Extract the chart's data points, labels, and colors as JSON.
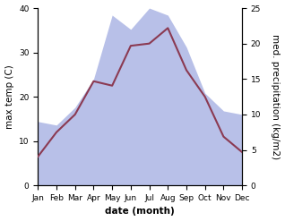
{
  "months": [
    "Jan",
    "Feb",
    "Mar",
    "Apr",
    "May",
    "Jun",
    "Jul",
    "Aug",
    "Sep",
    "Oct",
    "Nov",
    "Dec"
  ],
  "temp": [
    6.5,
    12.0,
    16.0,
    23.5,
    22.5,
    31.5,
    32.0,
    35.5,
    26.0,
    20.0,
    11.0,
    7.5
  ],
  "precip": [
    9.0,
    8.5,
    11.0,
    15.0,
    24.0,
    22.0,
    25.0,
    24.0,
    19.5,
    13.0,
    10.5,
    10.0
  ],
  "temp_color": "#8b3a52",
  "precip_fill_color": "#b8c0e8",
  "left_ylim": [
    0,
    40
  ],
  "right_ylim": [
    0,
    25
  ],
  "left_yticks": [
    0,
    10,
    20,
    30,
    40
  ],
  "right_yticks": [
    0,
    5,
    10,
    15,
    20,
    25
  ],
  "xlabel": "date (month)",
  "ylabel_left": "max temp (C)",
  "ylabel_right": "med. precipitation (kg/m2)",
  "bg_color": "#ffffff",
  "label_fontsize": 7.5,
  "tick_fontsize": 6.5
}
